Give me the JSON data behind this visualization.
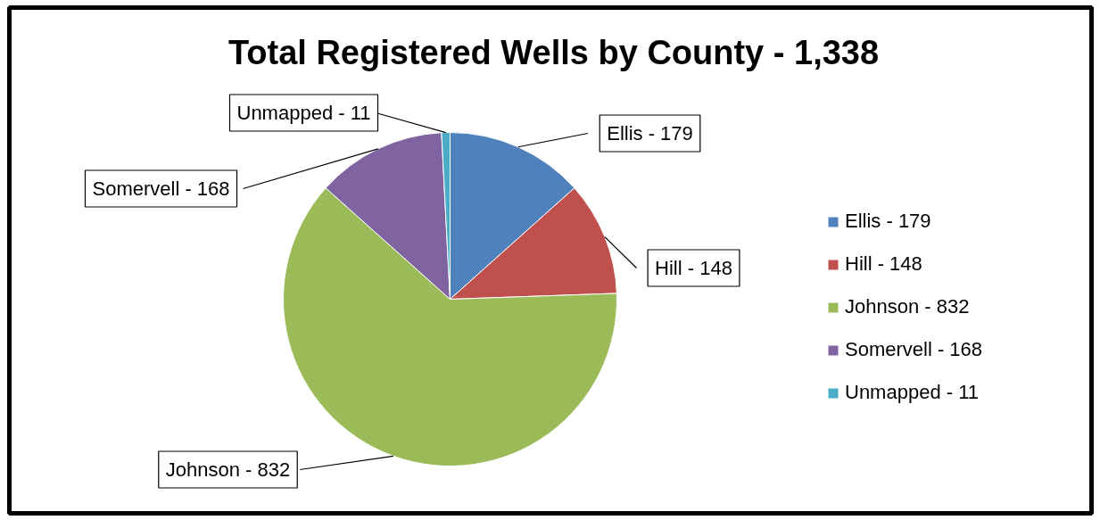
{
  "chart_data": {
    "type": "pie",
    "title": "Total Registered Wells by County - 1,338",
    "categories": [
      "Ellis - 179",
      "Hill - 148",
      "Johnson - 832",
      "Somervell - 168",
      "Unmapped - 11"
    ],
    "values": [
      13.38,
      11.06,
      62.18,
      12.56,
      0.82
    ],
    "colors": [
      "#4f81bd",
      "#c0504d",
      "#9bbb59",
      "#8064a2",
      "#4bacc6"
    ],
    "legend": "right"
  }
}
